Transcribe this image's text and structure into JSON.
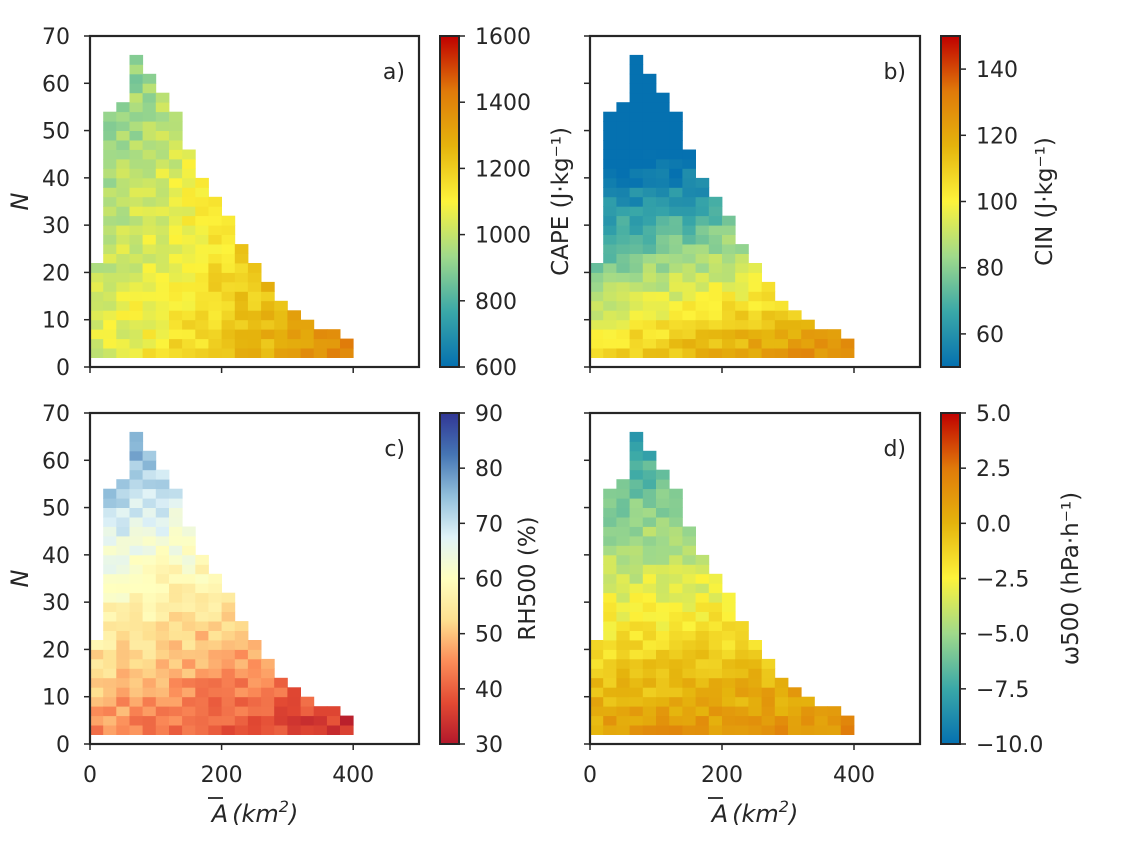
{
  "chart_data": [
    {
      "type": "heatmap",
      "panel_label": "a)",
      "ylabel": "N",
      "xlabel": "",
      "xlim": [
        0,
        500
      ],
      "ylim": [
        0,
        70
      ],
      "xticks": [
        "0",
        "200",
        "400"
      ],
      "yticks": [
        "0",
        "10",
        "20",
        "30",
        "40",
        "50",
        "60",
        "70"
      ],
      "show_xticklabels": false,
      "show_yticklabels": true,
      "colorbar": {
        "label": "CAPE (J·kg⁻¹)",
        "range": [
          600,
          1600
        ],
        "ticks": [
          "600",
          "800",
          "1000",
          "1200",
          "1400",
          "1600"
        ],
        "colors": [
          "#0571b0",
          "#3aa8a8",
          "#9fd98b",
          "#fdf33b",
          "#e5b40d",
          "#e07a0a",
          "#c00000"
        ]
      },
      "bin_width_x": 20,
      "bin_height_y": 2,
      "n_max_by_area": [
        20,
        52,
        54,
        64,
        60,
        56,
        52,
        44,
        38,
        34,
        30,
        24,
        20,
        16,
        12,
        10,
        8,
        6,
        6,
        4,
        0,
        0,
        0,
        0,
        0
      ],
      "peak_cell": [
        4,
        60
      ],
      "peak_value": 950,
      "base_value": 1040,
      "area_gradient": 18,
      "n_gradient": -3
    },
    {
      "type": "heatmap",
      "panel_label": "b)",
      "ylabel": "",
      "xlabel": "",
      "xlim": [
        0,
        500
      ],
      "ylim": [
        0,
        70
      ],
      "xticks": [
        "0",
        "200",
        "400"
      ],
      "yticks": [
        "0",
        "10",
        "20",
        "30",
        "40",
        "50",
        "60",
        "70"
      ],
      "show_xticklabels": false,
      "show_yticklabels": false,
      "colorbar": {
        "label": "CIN (J·kg⁻¹)",
        "range": [
          50,
          150
        ],
        "ticks": [
          "60",
          "80",
          "100",
          "120",
          "140"
        ],
        "colors": [
          "#0571b0",
          "#3aa8a8",
          "#9fd98b",
          "#fdf33b",
          "#e5b40d",
          "#e07a0a",
          "#c00000"
        ]
      },
      "bin_width_x": 20,
      "bin_height_y": 2,
      "n_max_by_area": [
        20,
        52,
        54,
        64,
        60,
        56,
        52,
        44,
        38,
        34,
        30,
        24,
        20,
        16,
        12,
        10,
        8,
        6,
        6,
        4,
        0,
        0,
        0,
        0,
        0
      ],
      "base_value": 110,
      "area_gradient": 1.2,
      "n_gradient": -1.6
    },
    {
      "type": "heatmap",
      "panel_label": "c)",
      "ylabel": "N",
      "xlabel": "A (km²)",
      "xlim": [
        0,
        500
      ],
      "ylim": [
        0,
        70
      ],
      "xticks": [
        "0",
        "200",
        "400"
      ],
      "yticks": [
        "0",
        "10",
        "20",
        "30",
        "40",
        "50",
        "60",
        "70"
      ],
      "show_xticklabels": true,
      "show_yticklabels": true,
      "colorbar": {
        "label": "RH500 (%)",
        "range": [
          30,
          90
        ],
        "ticks": [
          "30",
          "40",
          "50",
          "60",
          "70",
          "80",
          "90"
        ],
        "colors": [
          "#b2182b",
          "#e34a33",
          "#fc8d59",
          "#fee090",
          "#ffffbf",
          "#e0f3f8",
          "#91bfdb",
          "#4575b4",
          "#313695"
        ]
      },
      "bin_width_x": 20,
      "bin_height_y": 2,
      "n_max_by_area": [
        20,
        52,
        54,
        64,
        60,
        56,
        52,
        44,
        38,
        34,
        30,
        24,
        20,
        16,
        12,
        10,
        8,
        6,
        6,
        4,
        0,
        0,
        0,
        0,
        0
      ],
      "base_value": 44,
      "area_gradient": -0.6,
      "n_gradient": 0.55
    },
    {
      "type": "heatmap",
      "panel_label": "d)",
      "ylabel": "",
      "xlabel": "A (km²)",
      "xlim": [
        0,
        500
      ],
      "ylim": [
        0,
        70
      ],
      "xticks": [
        "0",
        "200",
        "400"
      ],
      "yticks": [
        "0",
        "10",
        "20",
        "30",
        "40",
        "50",
        "60",
        "70"
      ],
      "show_xticklabels": true,
      "show_yticklabels": false,
      "colorbar": {
        "label": "ω500 (hPa·h⁻¹)",
        "range": [
          -10,
          5
        ],
        "ticks": [
          "5.0",
          "2.5",
          "0.0",
          "−2.5",
          "−5.0",
          "−7.5",
          "−10.0"
        ],
        "tick_values": [
          5,
          2.5,
          0,
          -2.5,
          -5,
          -7.5,
          -10
        ],
        "colors": [
          "#0571b0",
          "#3aa8a8",
          "#9fd98b",
          "#fdf33b",
          "#e5b40d",
          "#e07a0a",
          "#c00000"
        ]
      },
      "bin_width_x": 20,
      "bin_height_y": 2,
      "n_max_by_area": [
        20,
        52,
        54,
        64,
        60,
        56,
        52,
        44,
        38,
        34,
        30,
        24,
        20,
        16,
        12,
        10,
        8,
        6,
        6,
        4,
        0,
        0,
        0,
        0,
        0
      ],
      "base_value": 1.0,
      "area_gradient": 0.05,
      "n_gradient": -0.14
    }
  ]
}
